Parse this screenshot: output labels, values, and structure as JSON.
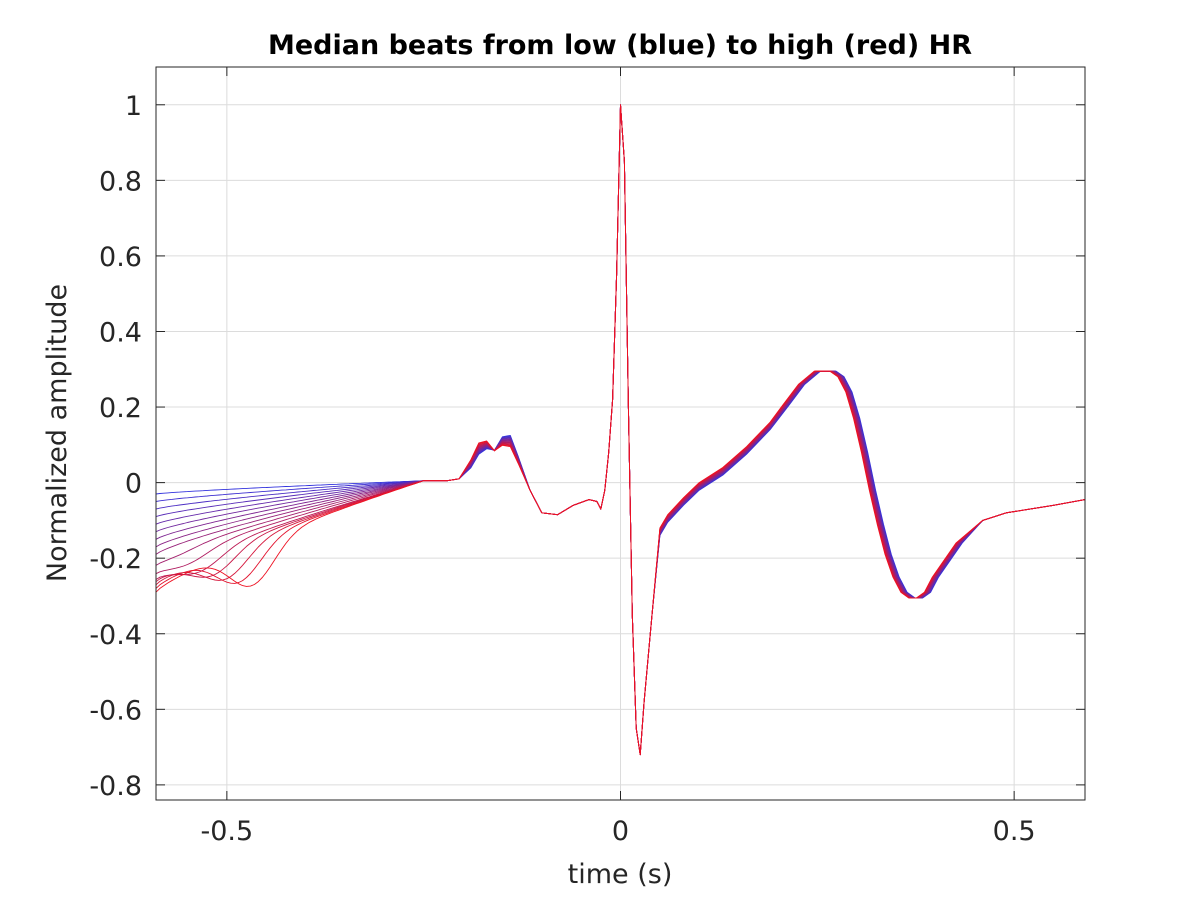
{
  "chart_data": {
    "type": "line",
    "title": "Median beats from low (blue) to high (red) HR",
    "xlabel": "time (s)",
    "ylabel": "Normalized amplitude",
    "xlim": [
      -0.59,
      0.59
    ],
    "ylim": [
      -0.84,
      1.1
    ],
    "xticks": [
      -0.5,
      0,
      0.5
    ],
    "xtick_labels": [
      "-0.5",
      "0",
      "0.5"
    ],
    "yticks": [
      -0.8,
      -0.6,
      -0.4,
      -0.2,
      0,
      0.2,
      0.4,
      0.6,
      0.8,
      1
    ],
    "ytick_labels": [
      "-0.8",
      "-0.6",
      "-0.4",
      "-0.2",
      "0",
      "0.2",
      "0.4",
      "0.6",
      "0.8",
      "1"
    ],
    "grid": true,
    "legend": "none",
    "color_low": "#3333dd",
    "color_high": "#ee1122",
    "series_count": 16,
    "template": {
      "x": [
        -0.25,
        -0.22,
        -0.205,
        -0.19,
        -0.18,
        -0.17,
        -0.16,
        -0.15,
        -0.14,
        -0.13,
        -0.115,
        -0.1,
        -0.08,
        -0.06,
        -0.04,
        -0.03,
        -0.025,
        -0.02,
        -0.015,
        -0.01,
        -0.005,
        0,
        0.005,
        0.01,
        0.015,
        0.02,
        0.025,
        0.03,
        0.04,
        0.05,
        0.06,
        0.08,
        0.1,
        0.13,
        0.16,
        0.19,
        0.21,
        0.23,
        0.25,
        0.27,
        0.28,
        0.29,
        0.3,
        0.31,
        0.32,
        0.33,
        0.34,
        0.35,
        0.36,
        0.37,
        0.38,
        0.39,
        0.4,
        0.43,
        0.46,
        0.49,
        0.52,
        0.55,
        0.59
      ],
      "y": [
        0.005,
        0.005,
        0.01,
        0.05,
        0.09,
        0.1,
        0.085,
        0.11,
        0.11,
        0.06,
        -0.02,
        -0.08,
        -0.085,
        -0.06,
        -0.045,
        -0.05,
        -0.07,
        -0.02,
        0.08,
        0.22,
        0.55,
        1.0,
        0.85,
        0.2,
        -0.35,
        -0.65,
        -0.72,
        -0.58,
        -0.35,
        -0.13,
        -0.095,
        -0.05,
        -0.01,
        0.03,
        0.085,
        0.15,
        0.205,
        0.26,
        0.295,
        0.295,
        0.28,
        0.24,
        0.17,
        0.08,
        -0.02,
        -0.11,
        -0.19,
        -0.25,
        -0.29,
        -0.305,
        -0.305,
        -0.29,
        -0.25,
        -0.16,
        -0.1,
        -0.08,
        -0.07,
        -0.06,
        -0.045
      ]
    },
    "baseline_left": [
      -0.03,
      -0.05,
      -0.07,
      -0.09,
      -0.11,
      -0.13,
      -0.15,
      -0.17,
      -0.19,
      -0.21,
      -0.23,
      -0.25,
      -0.26,
      -0.27,
      -0.28,
      -0.29
    ]
  }
}
